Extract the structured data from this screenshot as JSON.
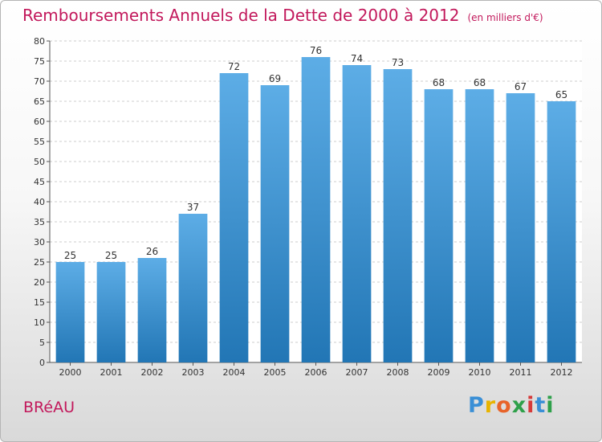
{
  "chart_data": {
    "type": "bar",
    "title": "Remboursements Annuels de la Dette de 2000 à 2012",
    "unit": "(en milliers d'€)",
    "categories": [
      "2000",
      "2001",
      "2002",
      "2003",
      "2004",
      "2005",
      "2006",
      "2007",
      "2008",
      "2009",
      "2010",
      "2011",
      "2012"
    ],
    "values": [
      25,
      25,
      26,
      37,
      72,
      69,
      76,
      74,
      73,
      68,
      68,
      67,
      65
    ],
    "ylim": [
      0,
      80
    ],
    "yticks": [
      0,
      5,
      10,
      15,
      20,
      25,
      30,
      35,
      40,
      45,
      50,
      55,
      60,
      65,
      70,
      75,
      80
    ],
    "grid": true,
    "colors": {
      "bar_top": "#5dade6",
      "bar_bottom": "#2276b5",
      "title": "#c2185b"
    }
  },
  "place": "BRéAU",
  "logo": {
    "letters": [
      "P",
      "r",
      "o",
      "x",
      "i",
      "t",
      "i"
    ],
    "colors": [
      "#3a8fd6",
      "#e8b400",
      "#e8642a",
      "#2ea04a",
      "#d63a3a",
      "#3a8fd6",
      "#2ea04a"
    ]
  }
}
